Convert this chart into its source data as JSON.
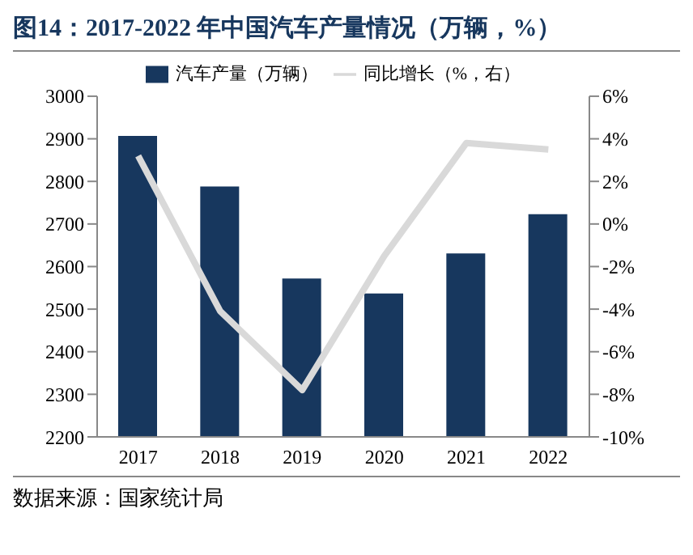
{
  "chart_data": {
    "type": "bar",
    "title": "图14：2017-2022 年中国汽车产量情况（万辆，%）",
    "categories": [
      "2017",
      "2018",
      "2019",
      "2020",
      "2021",
      "2022"
    ],
    "series": [
      {
        "name": "汽车产量（万辆）",
        "color": "#17375e",
        "values": [
          2907,
          2788,
          2572,
          2537,
          2631,
          2723
        ]
      },
      {
        "name": "同比增长（%，右）",
        "type": "line",
        "axis": "y2",
        "color": "#d9d9d9",
        "values": [
          3.2,
          -4.1,
          -7.8,
          -1.5,
          3.8,
          3.5
        ]
      }
    ],
    "ylim": [
      2200,
      3000
    ],
    "yticks": [
      2200,
      2300,
      2400,
      2500,
      2600,
      2700,
      2800,
      2900,
      3000
    ],
    "y2lim": [
      -10,
      6
    ],
    "y2ticks": [
      {
        "value": -10,
        "label": "-10%"
      },
      {
        "value": -8,
        "label": "-8%"
      },
      {
        "value": -6,
        "label": "-6%"
      },
      {
        "value": -4,
        "label": "-4%"
      },
      {
        "value": -2,
        "label": "-2%"
      },
      {
        "value": 0,
        "label": "0%"
      },
      {
        "value": 2,
        "label": "2%"
      },
      {
        "value": 4,
        "label": "4%"
      },
      {
        "value": 6,
        "label": "6%"
      }
    ],
    "legend": "top",
    "grid": false,
    "marker": "none",
    "annotations": [
      "数据来源：国家统计局"
    ]
  }
}
